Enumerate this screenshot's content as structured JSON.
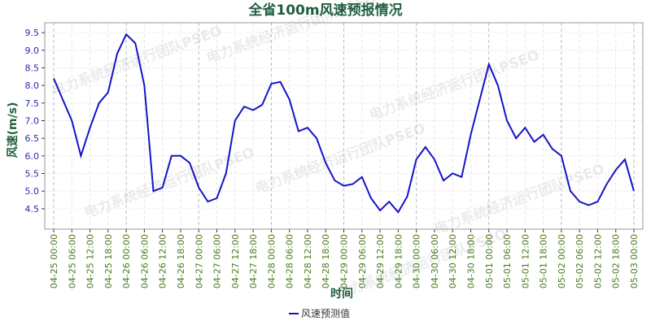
{
  "chart_data": {
    "type": "line",
    "title": "全省100m风速预报情况",
    "x_label": "时间",
    "y_label": "风速(m/s)",
    "watermark": "电力系统经济运行团队PSEO",
    "x": [
      "04-25 00:00",
      null,
      "04-25 06:00",
      null,
      "04-25 12:00",
      null,
      "04-25 18:00",
      null,
      "04-26 00:00",
      null,
      "04-26 06:00",
      null,
      "04-26 12:00",
      null,
      "04-26 18:00",
      null,
      "04-27 00:00",
      null,
      "04-27 06:00",
      null,
      "04-27 12:00",
      null,
      "04-27 18:00",
      null,
      "04-28 00:00",
      null,
      "04-28 06:00",
      null,
      "04-28 12:00",
      null,
      "04-28 18:00",
      null,
      "04-29 00:00",
      null,
      "04-29 06:00",
      null,
      "04-29 12:00",
      null,
      "04-29 18:00",
      null,
      "04-30 00:00",
      null,
      "04-30 06:00",
      null,
      "04-30 12:00",
      null,
      "04-30 18:00",
      null,
      "05-01 00:00",
      null,
      "05-01 06:00",
      null,
      "05-01 12:00",
      null,
      "05-01 18:00",
      null,
      "05-02 00:00",
      null,
      "05-02 06:00",
      null,
      "05-02 12:00",
      null,
      "05-02 18:00",
      null,
      "05-03 00:00"
    ],
    "series": [
      {
        "name": "风速预测值",
        "color": "#1414c8",
        "values": [
          8.2,
          7.6,
          7.0,
          6.0,
          6.8,
          7.5,
          7.8,
          8.9,
          9.45,
          9.2,
          8.0,
          5.0,
          5.1,
          6.0,
          6.0,
          5.8,
          5.1,
          4.7,
          4.8,
          5.5,
          7.0,
          7.4,
          7.3,
          7.45,
          8.05,
          8.1,
          7.6,
          6.7,
          6.8,
          6.5,
          5.8,
          5.3,
          5.15,
          5.2,
          5.4,
          4.8,
          4.45,
          4.7,
          4.4,
          4.85,
          5.9,
          6.25,
          5.9,
          5.3,
          5.5,
          5.4,
          6.6,
          7.6,
          8.6,
          8.0,
          7.0,
          6.5,
          6.8,
          6.4,
          6.6,
          6.2,
          6.0,
          5.0,
          4.7,
          4.6,
          4.7,
          5.2,
          5.6,
          5.9,
          5.0
        ]
      }
    ],
    "ylim": [
      3.92,
      9.78
    ],
    "yticks": [
      4.5,
      {
        "value": 5,
        "label": "5.0"
      },
      5.5,
      {
        "value": 6,
        "label": "6.0"
      },
      6.5,
      {
        "value": 7,
        "label": "7.0"
      },
      7.5,
      {
        "value": 8,
        "label": "8.0"
      },
      8.5,
      {
        "value": 9,
        "label": "9.0"
      },
      9.5
    ],
    "grid": true
  }
}
